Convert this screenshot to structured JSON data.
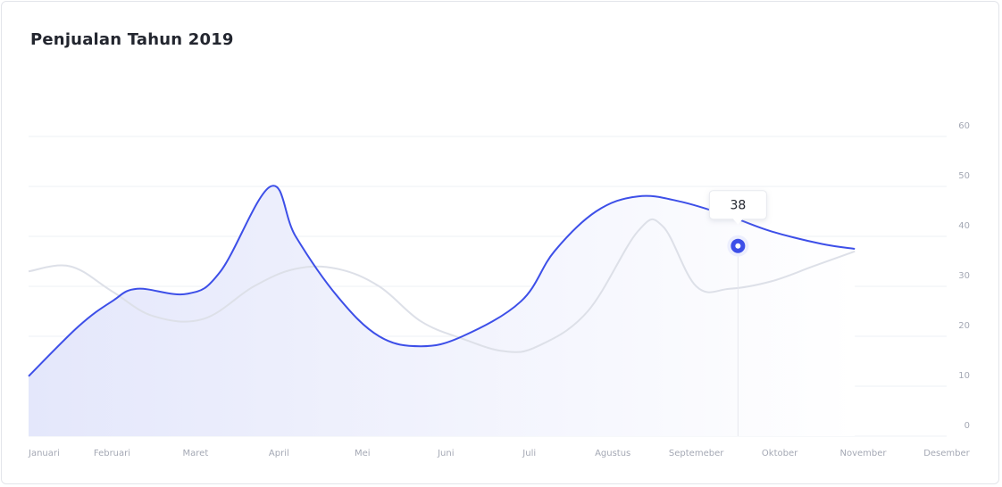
{
  "chart_data": {
    "type": "area",
    "title": "Penjualan Tahun 2019",
    "xlabel": "",
    "ylabel": "",
    "categories": [
      "Januari",
      "Februari",
      "Maret",
      "April",
      "Mei",
      "Juni",
      "Juli",
      "Agustus",
      "Septemeber",
      "Oktober",
      "November",
      "Desember"
    ],
    "y_ticks": [
      0,
      10,
      20,
      30,
      40,
      50,
      60
    ],
    "ylim": [
      0,
      60
    ],
    "grid": true,
    "y_axis_side": "right",
    "series": [
      {
        "color": "#3d4fe8",
        "x": [
          0,
          0.6,
          1,
          1.3,
          1.9,
          2.3,
          2.9,
          3.2,
          3.7,
          4.2,
          4.7,
          5.2,
          5.9,
          6.3,
          6.8,
          7.3,
          7.8,
          8.4,
          8.9,
          9.5,
          9.9
        ],
        "values": [
          12,
          22,
          27,
          29.5,
          28.5,
          33,
          50,
          40,
          28,
          20,
          18,
          20,
          27,
          37,
          45,
          48,
          47,
          44,
          41,
          38.5,
          37.5
        ]
      },
      {
        "color": "#dde0e8",
        "x": [
          0,
          0.5,
          1,
          1.5,
          2.1,
          2.7,
          3.2,
          3.7,
          4.2,
          4.7,
          5.2,
          5.7,
          6.1,
          6.7,
          7.3,
          7.6,
          8,
          8.4,
          8.9,
          9.4,
          9.9
        ],
        "values": [
          33,
          34,
          29,
          24,
          23.5,
          30,
          33.5,
          33.5,
          30,
          23,
          19.5,
          17,
          18,
          25,
          41,
          42,
          30,
          29.5,
          31,
          34,
          37
        ]
      }
    ],
    "tooltip": {
      "x": 8.5,
      "value": 38,
      "label": "38"
    }
  }
}
